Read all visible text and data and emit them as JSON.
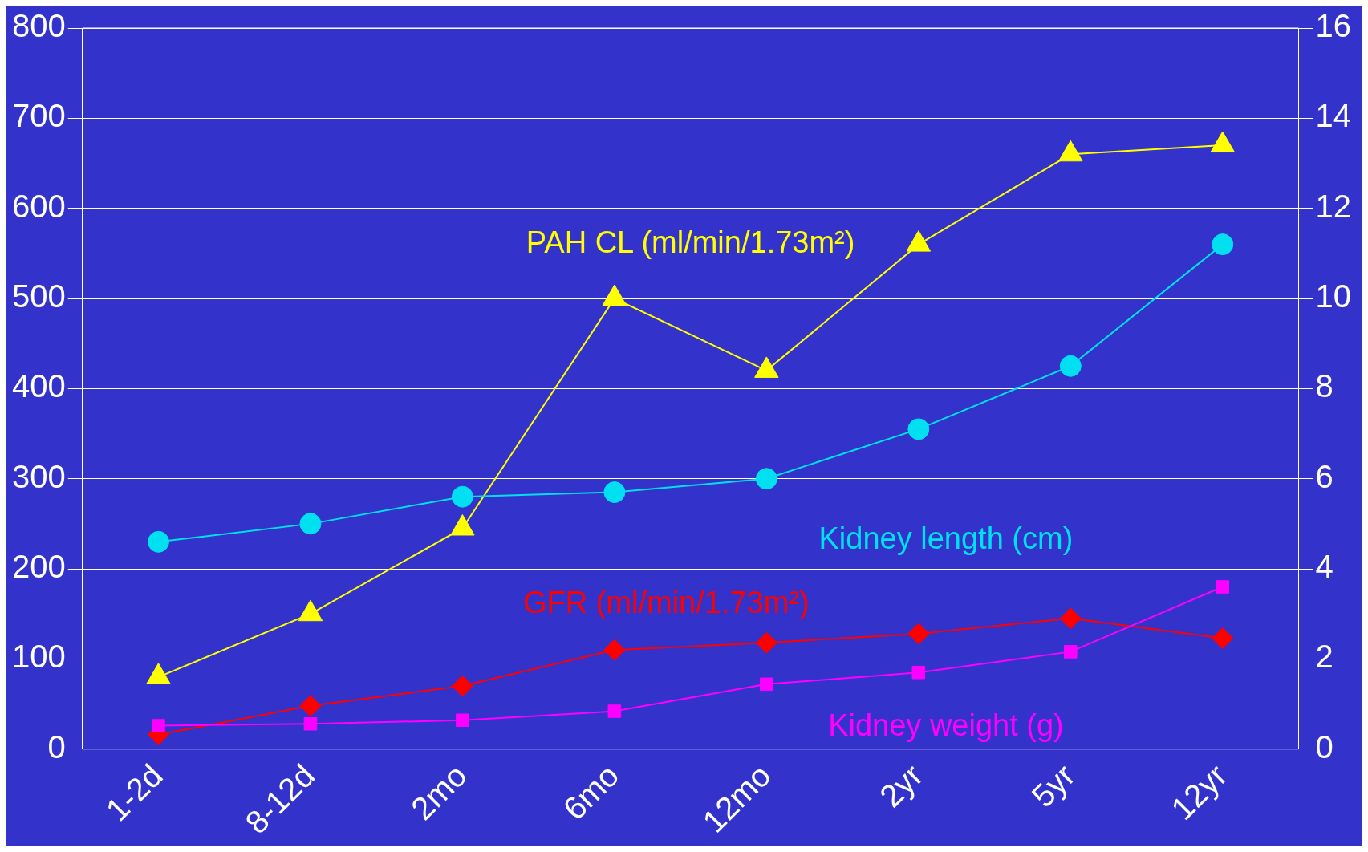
{
  "chart_data": {
    "type": "line",
    "categories": [
      "1-2d",
      "8-12d",
      "2mo",
      "6mo",
      "12mo",
      "2yr",
      "5yr",
      "12yr"
    ],
    "series": [
      {
        "name": "PAH CL (ml/min/1.73m²)",
        "color": "#ffff00",
        "marker": "triangle",
        "values": [
          80,
          150,
          245,
          500,
          420,
          560,
          660,
          670
        ]
      },
      {
        "name": "Kidney length (cm)",
        "color": "#00e0f0",
        "marker": "circle",
        "axis": "y2",
        "values": [
          4.6,
          5.0,
          5.6,
          5.7,
          6.0,
          7.1,
          8.5,
          11.2
        ]
      },
      {
        "name": "GFR (ml/min/1.73m²)",
        "color": "#ff0000",
        "marker": "diamond",
        "values": [
          16,
          48,
          70,
          110,
          118,
          128,
          145,
          123
        ]
      },
      {
        "name": "Kidney weight (g)",
        "color": "#ff00ff",
        "marker": "square",
        "values": [
          26,
          28,
          32,
          42,
          72,
          85,
          108,
          180
        ]
      }
    ],
    "ylim": [
      0,
      800
    ],
    "yticks": [
      0,
      100,
      200,
      300,
      400,
      500,
      600,
      700,
      800
    ],
    "y2lim": [
      0,
      16
    ],
    "y2ticks": [
      0,
      2,
      4,
      6,
      8,
      10,
      12,
      14,
      16
    ],
    "grid": "y",
    "legend": false
  }
}
